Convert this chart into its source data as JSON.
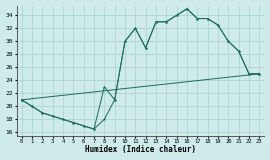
{
  "xlabel": "Humidex (Indice chaleur)",
  "bg_color": "#ceeaea",
  "line_color": "#1a6b5a",
  "grid_color": "#a8d0d0",
  "xlim": [
    -0.5,
    23.5
  ],
  "ylim": [
    15.5,
    35.5
  ],
  "xticks": [
    0,
    1,
    2,
    3,
    4,
    5,
    6,
    7,
    8,
    9,
    10,
    11,
    12,
    13,
    14,
    15,
    16,
    17,
    18,
    19,
    20,
    21,
    22,
    23
  ],
  "yticks": [
    16,
    18,
    20,
    22,
    24,
    26,
    28,
    30,
    32,
    34
  ],
  "line1_x": [
    0,
    1,
    2,
    3,
    4,
    5,
    6,
    7,
    8,
    9,
    10,
    11,
    12,
    13,
    14,
    15,
    16,
    17,
    18,
    19,
    20,
    21,
    22,
    23
  ],
  "line1_y": [
    21,
    20,
    19,
    18.5,
    18,
    17.5,
    17,
    16.5,
    23,
    21,
    30,
    32,
    29,
    33,
    33,
    34,
    35,
    33.5,
    33.5,
    32.5,
    30,
    28.5,
    25,
    25
  ],
  "line2_x": [
    0,
    1,
    2,
    3,
    4,
    5,
    6,
    7,
    8,
    9,
    10,
    11,
    12,
    13,
    14,
    15,
    16,
    17,
    18,
    19,
    20,
    21,
    22,
    23
  ],
  "line2_y": [
    21,
    20,
    19,
    18.5,
    18,
    17.5,
    17,
    16.5,
    18,
    21,
    30,
    32,
    29,
    33,
    33,
    34,
    35,
    33.5,
    33.5,
    32.5,
    30,
    28.5,
    25,
    25
  ],
  "line3_x": [
    0,
    23
  ],
  "line3_y": [
    21,
    25
  ]
}
